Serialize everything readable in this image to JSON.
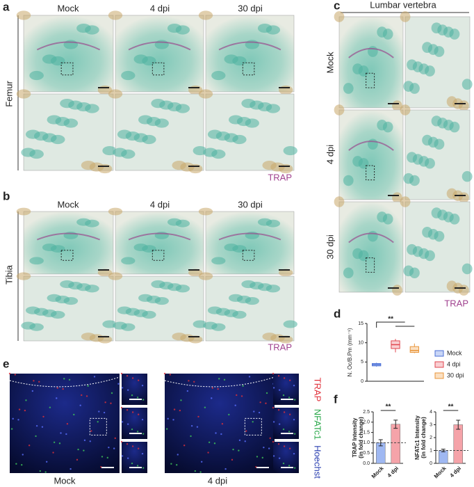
{
  "panel_labels": [
    "a",
    "b",
    "c",
    "d",
    "e",
    "f"
  ],
  "panels": {
    "a": {
      "columns": [
        "Mock",
        "4 dpi",
        "30 dpi"
      ],
      "row_label": "Femur",
      "stain": "TRAP"
    },
    "b": {
      "columns": [
        "Mock",
        "4 dpi",
        "30 dpi"
      ],
      "row_label": "Tibia",
      "stain": "TRAP"
    },
    "c": {
      "title": "Lumbar vertebra",
      "rows": [
        "Mock",
        "4 dpi",
        "30 dpi"
      ],
      "stain": "TRAP"
    },
    "e": {
      "captions": [
        "Mock",
        "4 dpi"
      ],
      "channels": [
        "TRAP",
        "NFATc1",
        "Hoechst"
      ]
    }
  },
  "chart_data": [
    {
      "type": "box",
      "ylabel": "N. Oc/B.Pm (mm⁻¹)",
      "ylim": [
        0,
        15
      ],
      "yticks": [
        0,
        5,
        10,
        15
      ],
      "series": [
        {
          "name": "Mock",
          "color": "#4a6fd6",
          "fill": "#c9d6f6",
          "min": 3.8,
          "q1": 4.0,
          "median": 4.3,
          "q3": 4.6,
          "max": 4.8
        },
        {
          "name": "4 dpi",
          "color": "#e0464f",
          "fill": "#f9cfd2",
          "min": 7.5,
          "q1": 8.5,
          "median": 9.5,
          "q3": 10.5,
          "max": 11.0
        },
        {
          "name": "30 dpi",
          "color": "#e8953a",
          "fill": "#fbe0c2",
          "min": 7.3,
          "q1": 7.5,
          "median": 8.0,
          "q3": 9.0,
          "max": 9.8
        }
      ],
      "significance": "**"
    },
    {
      "type": "bar",
      "ylabel": [
        "TRAP Intensity",
        "(in fold change)"
      ],
      "categories": [
        "Mock",
        "4 dpi"
      ],
      "values": [
        1.0,
        1.9
      ],
      "errors": [
        0.15,
        0.2
      ],
      "colors": [
        "#9fb8f2",
        "#f5a3a9"
      ],
      "ref_line": 1,
      "ylim": [
        0,
        2.5
      ],
      "yticks": [
        {
          "value": 0,
          "label": "0.0"
        },
        {
          "value": 0.5,
          "label": "0.5"
        },
        {
          "value": 1,
          "label": "1.0"
        },
        {
          "value": 1.5,
          "label": "1.5"
        },
        {
          "value": 2,
          "label": "2.0"
        },
        {
          "value": 2.5,
          "label": "2.5"
        }
      ],
      "significance": "**"
    },
    {
      "type": "bar",
      "ylabel": [
        "NFATc1 Intensity",
        "(in fold change)"
      ],
      "categories": [
        "Mock",
        "4 dpi"
      ],
      "values": [
        1.0,
        3.0
      ],
      "errors": [
        0.1,
        0.35
      ],
      "colors": [
        "#9fb8f2",
        "#f5a3a9"
      ],
      "ref_line": 1,
      "ylim": [
        0,
        4
      ],
      "yticks": [
        0,
        1,
        2,
        3,
        4
      ],
      "significance": "**"
    }
  ]
}
